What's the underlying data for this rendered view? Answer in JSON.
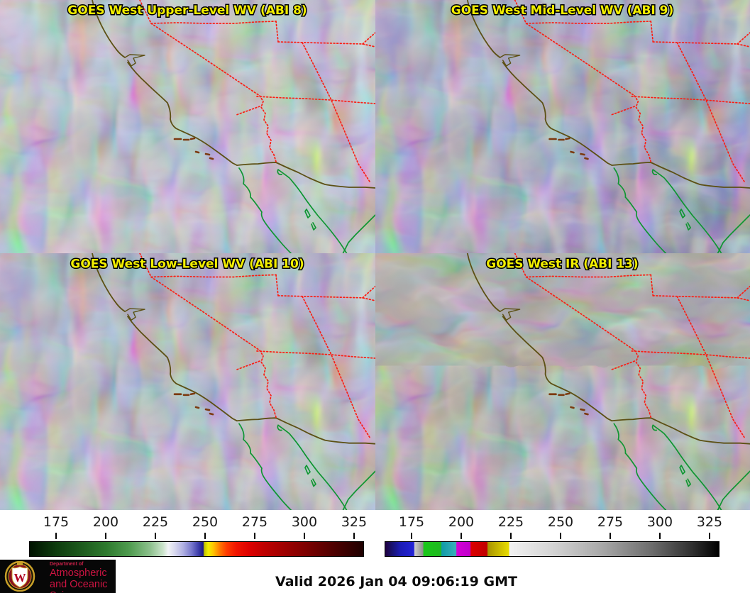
{
  "panels": [
    {
      "title": "GOES West Upper-Level WV (ABI 8)"
    },
    {
      "title": "GOES West Mid-Level WV (ABI 9)"
    },
    {
      "title": "GOES West Low-Level WV (ABI 10)"
    },
    {
      "title": "GOES West IR (ABI 13)"
    }
  ],
  "title_style": {
    "color": "#f2ee00",
    "outline": "#000000"
  },
  "map_overlay": {
    "coastline_color": "#5c5014",
    "state_border_color": "#fa1e14",
    "baja_coast_color": "#0f9632",
    "islands_color": "#7c3a10"
  },
  "colorbars": {
    "wv": {
      "ticks": [
        "175",
        "200",
        "225",
        "250",
        "275",
        "300",
        "325"
      ],
      "stops": [
        [
          0,
          "#001200"
        ],
        [
          8,
          "#0e3c0e"
        ],
        [
          16,
          "#1e5c1e"
        ],
        [
          23,
          "#2e7a2e"
        ],
        [
          30,
          "#509c50"
        ],
        [
          36,
          "#8cc08c"
        ],
        [
          40,
          "#cce4cc"
        ],
        [
          41.5,
          "#f2f4f6"
        ],
        [
          43.5,
          "#d8d8ee"
        ],
        [
          46,
          "#b0b0e2"
        ],
        [
          48.5,
          "#7878cc"
        ],
        [
          50.5,
          "#4040ac"
        ],
        [
          52,
          "#181884"
        ],
        [
          52.3,
          "#c0c000"
        ],
        [
          53.5,
          "#f0f000"
        ],
        [
          55,
          "#ffc400"
        ],
        [
          57,
          "#ff7800"
        ],
        [
          59,
          "#ff3c00"
        ],
        [
          62,
          "#f01400"
        ],
        [
          66,
          "#dc0000"
        ],
        [
          70,
          "#c00000"
        ],
        [
          76,
          "#a00000"
        ],
        [
          83,
          "#7c0000"
        ],
        [
          90,
          "#540000"
        ],
        [
          96,
          "#340000"
        ],
        [
          100,
          "#1e0000"
        ]
      ]
    },
    "ir": {
      "ticks": [
        "175",
        "200",
        "225",
        "250",
        "275",
        "300",
        "325"
      ],
      "stops": [
        [
          0,
          "#200040"
        ],
        [
          2,
          "#18126e"
        ],
        [
          4.5,
          "#1c1cb4"
        ],
        [
          8.6,
          "#2424d8"
        ],
        [
          8.8,
          "#cccccc"
        ],
        [
          11.3,
          "#8e8e8e"
        ],
        [
          11.5,
          "#18c818"
        ],
        [
          16.7,
          "#20b820"
        ],
        [
          16.9,
          "#109aa8"
        ],
        [
          21.2,
          "#38b0b8"
        ],
        [
          21.4,
          "#d400d4"
        ],
        [
          25.4,
          "#c000cc"
        ],
        [
          25.7,
          "#dc0000"
        ],
        [
          30.5,
          "#c00000"
        ],
        [
          30.8,
          "#a89400"
        ],
        [
          37,
          "#e8dc00"
        ],
        [
          37.3,
          "#f2f2f2"
        ],
        [
          50,
          "#d4d4d4"
        ],
        [
          65,
          "#a8a8a8"
        ],
        [
          80,
          "#6c6c6c"
        ],
        [
          92,
          "#303030"
        ],
        [
          100,
          "#000000"
        ]
      ]
    }
  },
  "logo": {
    "dept": "Department of",
    "line1": "Atmospheric",
    "line2": "and Oceanic Sciences",
    "monogram": "W"
  },
  "footer": {
    "valid": "Valid 2026 Jan 04 09:06:19 GMT"
  }
}
